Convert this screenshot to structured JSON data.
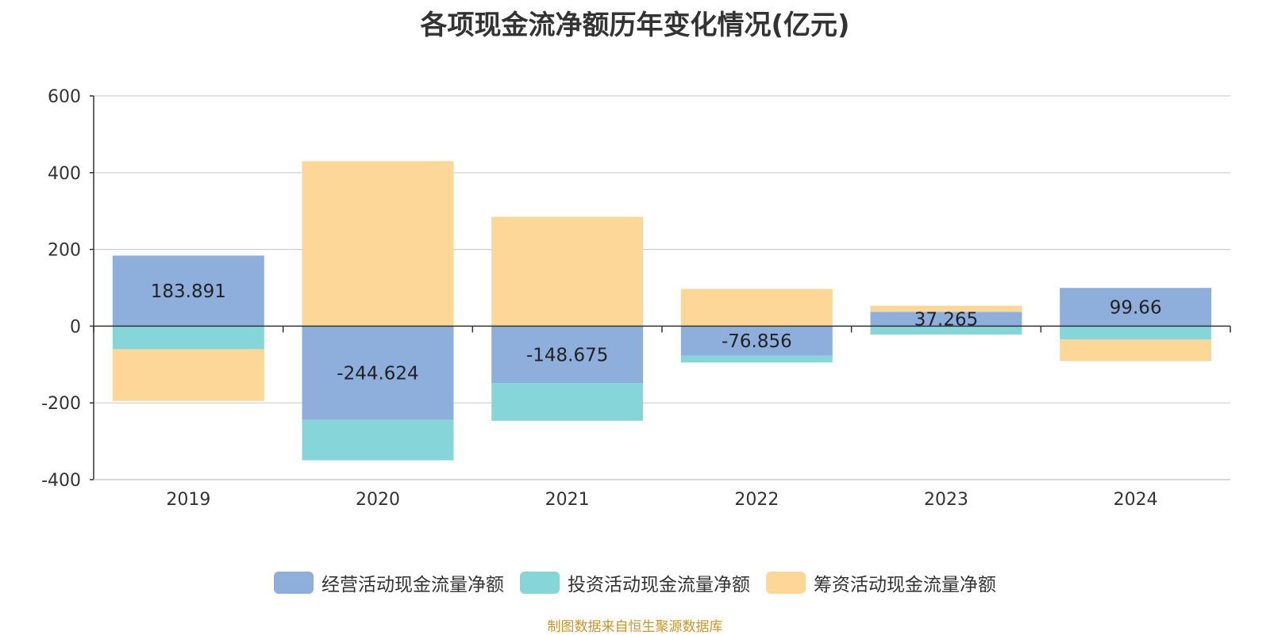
{
  "chart_data": {
    "type": "bar",
    "stacked": true,
    "title": "各项现金流净额历年变化情况(亿元)",
    "categories": [
      "2019",
      "2020",
      "2021",
      "2022",
      "2023",
      "2024"
    ],
    "ylim": [
      -400,
      600
    ],
    "yticks": [
      600,
      400,
      200,
      0,
      -200,
      -400
    ],
    "grid": true,
    "legend_position": "bottom",
    "series": [
      {
        "name": "经营活动现金流量净额",
        "color": "#8eaedb",
        "values": [
          183.891,
          -244.624,
          -148.675,
          -76.856,
          37.265,
          99.66
        ],
        "labels": [
          "183.891",
          "-244.624",
          "-148.675",
          "-76.856",
          "37.265",
          "99.66"
        ]
      },
      {
        "name": "投资活动现金流量净额",
        "color": "#86d5d8",
        "values": [
          -60,
          -105,
          -98,
          -18,
          -22,
          -35
        ]
      },
      {
        "name": "筹资活动现金流量净额",
        "color": "#fdd797",
        "values": [
          -135,
          430,
          285,
          97,
          16,
          -56
        ]
      }
    ]
  },
  "source_note": "制图数据来自恒生聚源数据库"
}
